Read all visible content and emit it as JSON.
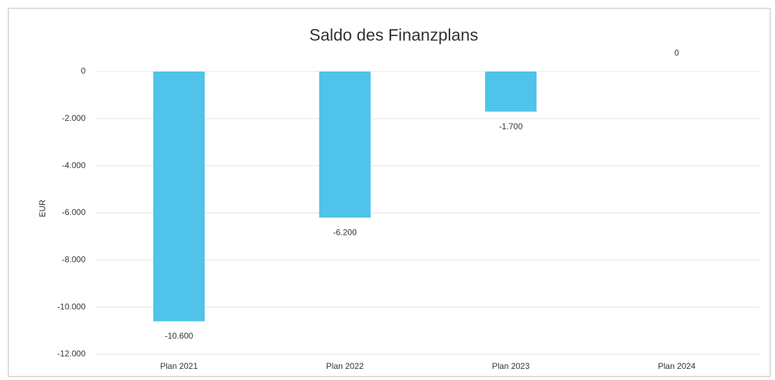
{
  "chart_data": {
    "type": "bar",
    "title": "Saldo des Finanzplans",
    "y_label": "EUR",
    "categories": [
      "Plan 2021",
      "Plan 2022",
      "Plan 2023",
      "Plan 2024"
    ],
    "values": [
      -10600,
      -6200,
      -1700,
      0
    ],
    "value_labels": [
      "-10.600",
      "-6.200",
      "-1.700",
      "0"
    ],
    "color": "#4fc3ea",
    "ylim": [
      -12000,
      0
    ],
    "yticks": [
      0,
      {
        "value": -2000,
        "label": "-2.000"
      },
      {
        "value": -4000,
        "label": "-4.000"
      },
      {
        "value": -6000,
        "label": "-6.000"
      },
      {
        "value": -8000,
        "label": "-8.000"
      },
      {
        "value": -10000,
        "label": "-10.000"
      },
      {
        "value": -12000,
        "label": "-12.000"
      }
    ],
    "grid": true
  }
}
